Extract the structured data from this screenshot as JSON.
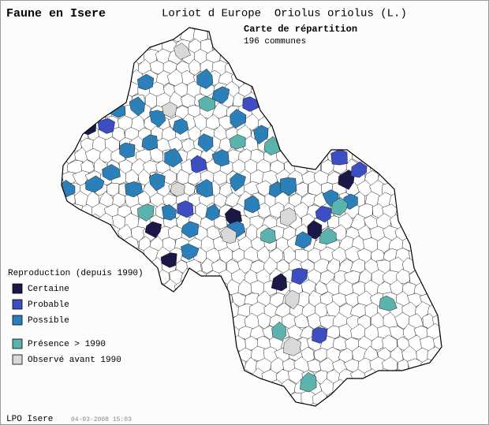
{
  "header": {
    "title": "Faune en Isere",
    "species": "Loriot d Europe  Oriolus oriolus (L.)",
    "map_title": "Carte de répartition",
    "count": "196 communes"
  },
  "legend": {
    "title": "Reproduction (depuis 1990)",
    "items": [
      {
        "label": "Certaine",
        "color": "#1b1747"
      },
      {
        "label": "Probable",
        "color": "#3d4ec2"
      },
      {
        "label": "Possible",
        "color": "#2b80ba"
      },
      {
        "label": "Présence > 1990",
        "color": "#5bb3ad"
      },
      {
        "label": "Observé avant 1990",
        "color": "#d9d9d9"
      }
    ]
  },
  "footer": {
    "source": "LPO Isere",
    "date": "04-03-2008 15:03"
  }
}
